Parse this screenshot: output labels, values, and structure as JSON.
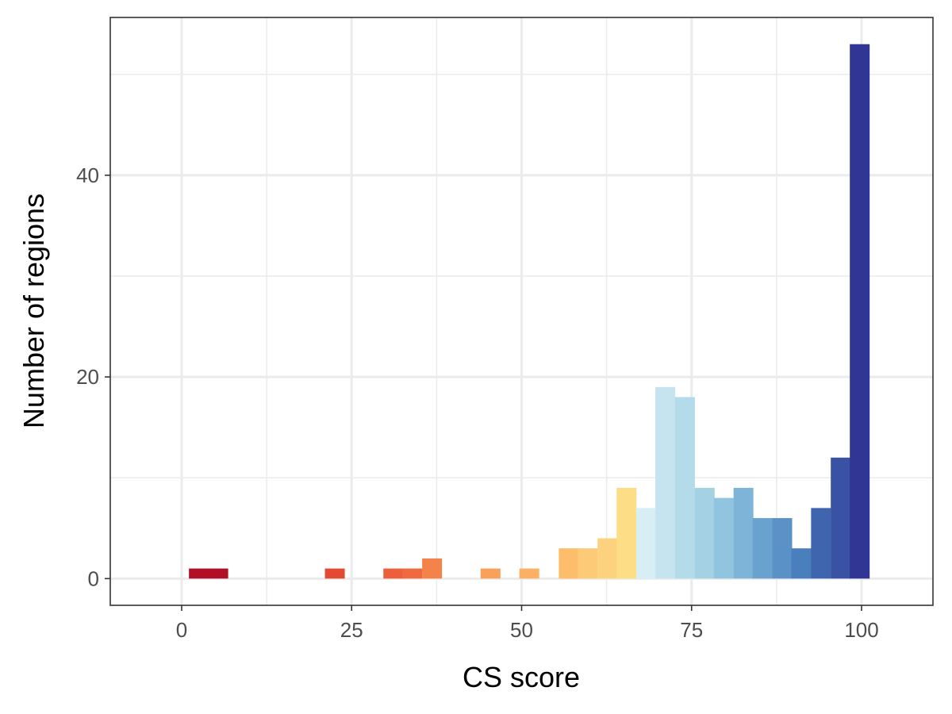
{
  "chart_data": {
    "type": "bar",
    "title": "",
    "xlabel": "CS score",
    "ylabel": "Number of regions",
    "xlim": [
      -10.5,
      110.5
    ],
    "ylim": [
      -2.65,
      55.65
    ],
    "x_ticks": [
      0,
      25,
      50,
      75,
      100
    ],
    "y_ticks": [
      0,
      20,
      40
    ],
    "grid": true,
    "bin_width": 2.86,
    "bins": [
      {
        "x": 2.5,
        "count": 1,
        "color": "#b10f26"
      },
      {
        "x": 5.35,
        "count": 1,
        "color": "#b10f26"
      },
      {
        "x": 22.5,
        "count": 1,
        "color": "#e34a33"
      },
      {
        "x": 31.1,
        "count": 1,
        "color": "#ec5e3c"
      },
      {
        "x": 33.9,
        "count": 1,
        "color": "#f06a41"
      },
      {
        "x": 36.8,
        "count": 2,
        "color": "#f4834b"
      },
      {
        "x": 45.4,
        "count": 1,
        "color": "#f9a05a"
      },
      {
        "x": 51.1,
        "count": 1,
        "color": "#fbb066"
      },
      {
        "x": 56.9,
        "count": 3,
        "color": "#fdbd6a"
      },
      {
        "x": 59.7,
        "count": 3,
        "color": "#fdca77"
      },
      {
        "x": 62.6,
        "count": 4,
        "color": "#fdd27f"
      },
      {
        "x": 65.4,
        "count": 9,
        "color": "#fedd87"
      },
      {
        "x": 68.3,
        "count": 7,
        "color": "#d8eef5"
      },
      {
        "x": 71.1,
        "count": 19,
        "color": "#c5e4ef"
      },
      {
        "x": 74.0,
        "count": 18,
        "color": "#b3dbea"
      },
      {
        "x": 76.9,
        "count": 9,
        "color": "#a4d2e4"
      },
      {
        "x": 79.7,
        "count": 8,
        "color": "#91c4de"
      },
      {
        "x": 82.6,
        "count": 9,
        "color": "#7db4d8"
      },
      {
        "x": 85.4,
        "count": 6,
        "color": "#6aa2cf"
      },
      {
        "x": 88.3,
        "count": 6,
        "color": "#5a92c7"
      },
      {
        "x": 91.1,
        "count": 3,
        "color": "#4a7fbe"
      },
      {
        "x": 94.0,
        "count": 7,
        "color": "#3e65ad"
      },
      {
        "x": 96.9,
        "count": 12,
        "color": "#3a52a4"
      },
      {
        "x": 99.7,
        "count": 53,
        "color": "#313695"
      }
    ]
  }
}
